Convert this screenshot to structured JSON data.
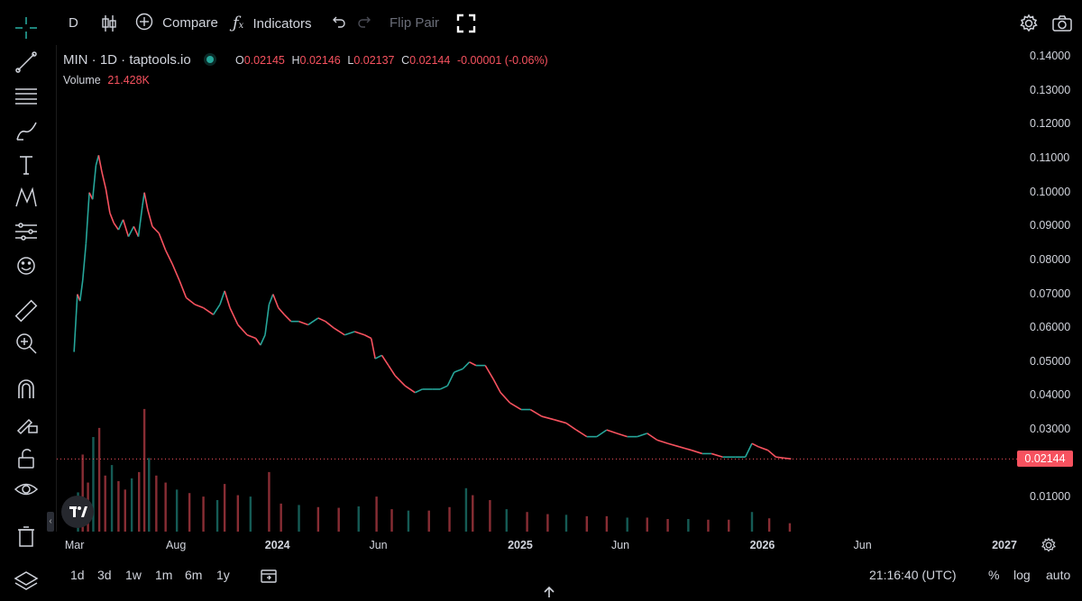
{
  "toolbar": {
    "interval": "D",
    "compare_label": "Compare",
    "indicators_label": "Indicators",
    "flip_label": "Flip Pair"
  },
  "legend": {
    "symbol": "MIN · 1D · taptools.io",
    "o_label": "O",
    "o_value": "0.02145",
    "h_label": "H",
    "h_value": "0.02146",
    "l_label": "L",
    "l_value": "0.02137",
    "c_label": "C",
    "c_value": "0.02144",
    "change": "-0.00001 (-0.06%)",
    "volume_label": "Volume",
    "volume_value": "21.428K"
  },
  "current_price": "0.02144",
  "bottom": {
    "ranges": [
      "1d",
      "3d",
      "1w",
      "1m",
      "6m",
      "1y"
    ],
    "time": "21:16:40 (UTC)",
    "pct": "%",
    "log": "log",
    "auto": "auto"
  },
  "colors": {
    "up": "#26a69a",
    "down": "#f7525f",
    "background": "#000000"
  },
  "icons": [
    "crosshair-icon",
    "trend-line-icon",
    "fib-icon",
    "brush-icon",
    "text-icon",
    "pattern-icon",
    "forecast-icon",
    "emoji-icon",
    "ruler-icon",
    "zoom-in-icon",
    "magnet-icon",
    "lock-drawing-icon",
    "unlock-icon",
    "eye-icon",
    "trash-icon",
    "layers-icon"
  ],
  "chart_data": {
    "type": "candlestick",
    "title": "MIN · 1D · taptools.io",
    "y_ticks": [
      "0.14000",
      "0.13000",
      "0.12000",
      "0.11000",
      "0.10000",
      "0.09000",
      "0.08000",
      "0.07000",
      "0.06000",
      "0.05000",
      "0.04000",
      "0.03000",
      "0.01000"
    ],
    "ylim": [
      0.0,
      0.1435
    ],
    "x_ticks": [
      "Mar",
      "Aug",
      "2024",
      "Jun",
      "2025",
      "Jun",
      "2026",
      "Jun",
      "2027"
    ],
    "x_tick_dates": [
      "2023-03-01",
      "2023-08-01",
      "2024-01-01",
      "2024-06-01",
      "2025-01-01",
      "2025-06-01",
      "2026-01-01",
      "2026-06-01",
      "2027-01-01"
    ],
    "xlim": [
      "2023-02-01",
      "2027-01-20"
    ],
    "price_points": [
      [
        "2023-02-27",
        0.053
      ],
      [
        "2023-03-04",
        0.07
      ],
      [
        "2023-03-08",
        0.068
      ],
      [
        "2023-03-12",
        0.074
      ],
      [
        "2023-03-17",
        0.085
      ],
      [
        "2023-03-22",
        0.1
      ],
      [
        "2023-03-27",
        0.098
      ],
      [
        "2023-04-01",
        0.108
      ],
      [
        "2023-04-05",
        0.111
      ],
      [
        "2023-04-10",
        0.106
      ],
      [
        "2023-04-16",
        0.101
      ],
      [
        "2023-04-22",
        0.094
      ],
      [
        "2023-04-28",
        0.091
      ],
      [
        "2023-05-05",
        0.089
      ],
      [
        "2023-05-12",
        0.092
      ],
      [
        "2023-05-20",
        0.087
      ],
      [
        "2023-05-28",
        0.09
      ],
      [
        "2023-06-04",
        0.087
      ],
      [
        "2023-06-10",
        0.096
      ],
      [
        "2023-06-13",
        0.1
      ],
      [
        "2023-06-18",
        0.095
      ],
      [
        "2023-06-25",
        0.09
      ],
      [
        "2023-07-05",
        0.088
      ],
      [
        "2023-07-15",
        0.083
      ],
      [
        "2023-07-25",
        0.079
      ],
      [
        "2023-08-05",
        0.074
      ],
      [
        "2023-08-15",
        0.069
      ],
      [
        "2023-08-28",
        0.067
      ],
      [
        "2023-09-10",
        0.066
      ],
      [
        "2023-09-25",
        0.064
      ],
      [
        "2023-10-05",
        0.067
      ],
      [
        "2023-10-12",
        0.071
      ],
      [
        "2023-10-20",
        0.066
      ],
      [
        "2023-11-01",
        0.061
      ],
      [
        "2023-11-15",
        0.058
      ],
      [
        "2023-11-28",
        0.057
      ],
      [
        "2023-12-05",
        0.055
      ],
      [
        "2023-12-12",
        0.058
      ],
      [
        "2023-12-18",
        0.067
      ],
      [
        "2023-12-24",
        0.07
      ],
      [
        "2024-01-01",
        0.066
      ],
      [
        "2024-01-10",
        0.064
      ],
      [
        "2024-01-20",
        0.062
      ],
      [
        "2024-02-01",
        0.062
      ],
      [
        "2024-02-15",
        0.061
      ],
      [
        "2024-03-01",
        0.063
      ],
      [
        "2024-03-12",
        0.062
      ],
      [
        "2024-03-25",
        0.06
      ],
      [
        "2024-04-10",
        0.058
      ],
      [
        "2024-04-25",
        0.059
      ],
      [
        "2024-05-10",
        0.058
      ],
      [
        "2024-05-20",
        0.057
      ],
      [
        "2024-05-26",
        0.051
      ],
      [
        "2024-06-05",
        0.052
      ],
      [
        "2024-06-15",
        0.049
      ],
      [
        "2024-06-25",
        0.046
      ],
      [
        "2024-07-10",
        0.043
      ],
      [
        "2024-07-25",
        0.041
      ],
      [
        "2024-08-05",
        0.042
      ],
      [
        "2024-08-20",
        0.042
      ],
      [
        "2024-09-01",
        0.042
      ],
      [
        "2024-09-12",
        0.043
      ],
      [
        "2024-09-22",
        0.047
      ],
      [
        "2024-10-05",
        0.048
      ],
      [
        "2024-10-15",
        0.05
      ],
      [
        "2024-10-25",
        0.049
      ],
      [
        "2024-11-08",
        0.049
      ],
      [
        "2024-11-20",
        0.045
      ],
      [
        "2024-12-01",
        0.041
      ],
      [
        "2024-12-15",
        0.038
      ],
      [
        "2025-01-01",
        0.036
      ],
      [
        "2025-01-15",
        0.036
      ],
      [
        "2025-02-01",
        0.034
      ],
      [
        "2025-02-20",
        0.033
      ],
      [
        "2025-03-10",
        0.032
      ],
      [
        "2025-03-25",
        0.03
      ],
      [
        "2025-04-10",
        0.028
      ],
      [
        "2025-04-25",
        0.028
      ],
      [
        "2025-05-10",
        0.03
      ],
      [
        "2025-05-25",
        0.029
      ],
      [
        "2025-06-10",
        0.028
      ],
      [
        "2025-06-25",
        0.028
      ],
      [
        "2025-07-10",
        0.029
      ],
      [
        "2025-07-25",
        0.027
      ],
      [
        "2025-08-10",
        0.026
      ],
      [
        "2025-08-28",
        0.025
      ],
      [
        "2025-09-15",
        0.024
      ],
      [
        "2025-10-01",
        0.023
      ],
      [
        "2025-10-15",
        0.023
      ],
      [
        "2025-11-01",
        0.022
      ],
      [
        "2025-11-20",
        0.022
      ],
      [
        "2025-12-05",
        0.022
      ],
      [
        "2025-12-15",
        0.026
      ],
      [
        "2025-12-25",
        0.025
      ],
      [
        "2026-01-08",
        0.024
      ],
      [
        "2026-01-20",
        0.022
      ],
      [
        "2026-02-01",
        0.0217
      ],
      [
        "2026-02-12",
        0.02144
      ]
    ],
    "volume_bars": [
      [
        "2023-03-05",
        0.0056
      ],
      [
        "2023-03-12",
        0.011
      ],
      [
        "2023-03-20",
        0.007
      ],
      [
        "2023-03-28",
        0.0135
      ],
      [
        "2023-04-06",
        0.0148
      ],
      [
        "2023-04-15",
        0.008
      ],
      [
        "2023-04-25",
        0.0095
      ],
      [
        "2023-05-05",
        0.0072
      ],
      [
        "2023-05-15",
        0.006
      ],
      [
        "2023-05-25",
        0.0076
      ],
      [
        "2023-06-05",
        0.0085
      ],
      [
        "2023-06-13",
        0.0175
      ],
      [
        "2023-06-20",
        0.0105
      ],
      [
        "2023-07-01",
        0.008
      ],
      [
        "2023-07-15",
        0.007
      ],
      [
        "2023-08-01",
        0.006
      ],
      [
        "2023-08-20",
        0.0055
      ],
      [
        "2023-09-10",
        0.005
      ],
      [
        "2023-10-01",
        0.0045
      ],
      [
        "2023-10-12",
        0.0068
      ],
      [
        "2023-11-01",
        0.0052
      ],
      [
        "2023-11-20",
        0.005
      ],
      [
        "2023-12-18",
        0.0085
      ],
      [
        "2024-01-05",
        0.004
      ],
      [
        "2024-02-01",
        0.0038
      ],
      [
        "2024-03-01",
        0.0035
      ],
      [
        "2024-04-01",
        0.0034
      ],
      [
        "2024-05-01",
        0.0036
      ],
      [
        "2024-05-28",
        0.005
      ],
      [
        "2024-06-20",
        0.0032
      ],
      [
        "2024-07-15",
        0.003
      ],
      [
        "2024-08-15",
        0.003
      ],
      [
        "2024-09-15",
        0.0035
      ],
      [
        "2024-10-10",
        0.0062
      ],
      [
        "2024-10-20",
        0.0052
      ],
      [
        "2024-11-15",
        0.0045
      ],
      [
        "2024-12-10",
        0.0032
      ],
      [
        "2025-01-10",
        0.0028
      ],
      [
        "2025-02-10",
        0.0025
      ],
      [
        "2025-03-10",
        0.0024
      ],
      [
        "2025-04-10",
        0.0022
      ],
      [
        "2025-05-10",
        0.0022
      ],
      [
        "2025-06-10",
        0.002
      ],
      [
        "2025-07-10",
        0.002
      ],
      [
        "2025-08-10",
        0.0018
      ],
      [
        "2025-09-10",
        0.0018
      ],
      [
        "2025-10-10",
        0.0017
      ],
      [
        "2025-11-10",
        0.0017
      ],
      [
        "2025-12-15",
        0.0028
      ],
      [
        "2026-01-10",
        0.0019
      ],
      [
        "2026-02-10",
        0.0012
      ]
    ]
  }
}
